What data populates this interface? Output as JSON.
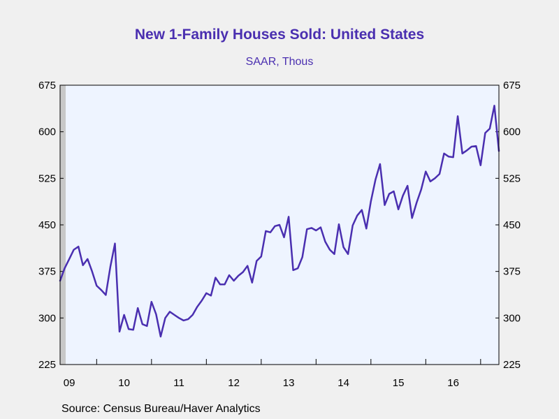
{
  "chart_data": {
    "type": "line",
    "title": "New 1-Family Houses Sold: United States",
    "subtitle": "SAAR, Thous",
    "source": "Source:  Census Bureau/Haver Analytics",
    "xlabel": "",
    "ylabel": "",
    "ylim": [
      225,
      675
    ],
    "yticks": [
      225,
      300,
      375,
      450,
      525,
      600,
      675
    ],
    "y_tick_labels": [
      "225",
      "300",
      "375",
      "450",
      "525",
      "600",
      "675"
    ],
    "x_tick_labels": [
      "09",
      "10",
      "11",
      "12",
      "13",
      "14",
      "15",
      "16"
    ],
    "grid": false,
    "line_color": "#4a2fb0",
    "plot_background": "#eef4ff",
    "start": "2009-05",
    "series": [
      {
        "values": [
          360,
          380,
          395,
          410,
          415,
          385,
          395,
          375,
          352,
          345,
          337,
          383,
          420,
          278,
          305,
          282,
          281,
          316,
          290,
          287,
          326,
          306,
          270,
          300,
          310,
          305,
          300,
          296,
          298,
          305,
          318,
          328,
          340,
          336,
          365,
          354,
          354,
          369,
          360,
          368,
          374,
          384,
          357,
          392,
          399,
          440,
          438,
          448,
          450,
          430,
          463,
          377,
          380,
          398,
          443,
          445,
          441,
          446,
          423,
          410,
          403,
          451,
          414,
          403,
          449,
          465,
          474,
          444,
          488,
          523,
          548,
          482,
          500,
          504,
          475,
          497,
          513,
          461,
          486,
          507,
          536,
          520,
          525,
          532,
          565,
          560,
          559,
          625,
          565,
          570,
          576,
          577,
          546,
          598,
          605,
          642,
          569
        ]
      }
    ]
  }
}
